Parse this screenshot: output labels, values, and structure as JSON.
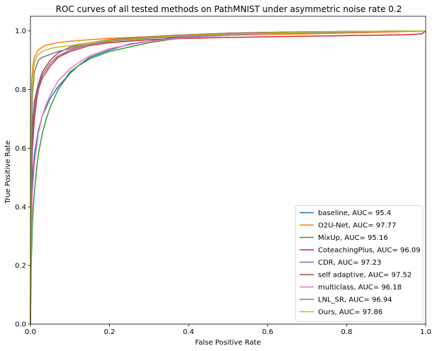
{
  "chart_data": {
    "type": "line",
    "title": "ROC curves of all tested methods on PathMNIST under asymmetric noise rate 0.2",
    "xlabel": "False Positive Rate",
    "ylabel": "True Positive Rate",
    "xlim": [
      0.0,
      1.0
    ],
    "ylim": [
      0.0,
      1.05
    ],
    "xticks": [
      "0.0",
      "0.2",
      "0.4",
      "0.6",
      "0.8",
      "1.0"
    ],
    "yticks": [
      "0.0",
      "0.2",
      "0.4",
      "0.6",
      "0.8",
      "1.0"
    ],
    "grid": false,
    "legend_position": "lower-right",
    "series": [
      {
        "name": "baseline, AUC= 95.4",
        "color": "#1f77b4",
        "points": [
          [
            0,
            0
          ],
          [
            0.002,
            0.38
          ],
          [
            0.005,
            0.5
          ],
          [
            0.01,
            0.58
          ],
          [
            0.02,
            0.66
          ],
          [
            0.03,
            0.71
          ],
          [
            0.05,
            0.77
          ],
          [
            0.07,
            0.81
          ],
          [
            0.09,
            0.84
          ],
          [
            0.1,
            0.86
          ],
          [
            0.12,
            0.88
          ],
          [
            0.15,
            0.91
          ],
          [
            0.2,
            0.935
          ],
          [
            0.25,
            0.955
          ],
          [
            0.3,
            0.965
          ],
          [
            0.35,
            0.975
          ],
          [
            0.4,
            0.98
          ],
          [
            0.5,
            0.985
          ],
          [
            0.6,
            0.99
          ],
          [
            0.7,
            0.993
          ],
          [
            0.8,
            0.996
          ],
          [
            0.9,
            0.998
          ],
          [
            1.0,
            1.0
          ]
        ]
      },
      {
        "name": "O2U-Net, AUC= 97.77",
        "color": "#ff7f0e",
        "points": [
          [
            0,
            0
          ],
          [
            0.001,
            0.7
          ],
          [
            0.003,
            0.82
          ],
          [
            0.006,
            0.88
          ],
          [
            0.01,
            0.91
          ],
          [
            0.015,
            0.925
          ],
          [
            0.02,
            0.935
          ],
          [
            0.03,
            0.945
          ],
          [
            0.04,
            0.952
          ],
          [
            0.05,
            0.955
          ],
          [
            0.07,
            0.96
          ],
          [
            0.1,
            0.965
          ],
          [
            0.15,
            0.97
          ],
          [
            0.2,
            0.975
          ],
          [
            0.3,
            0.98
          ],
          [
            0.4,
            0.983
          ],
          [
            0.5,
            0.985
          ],
          [
            0.6,
            0.988
          ],
          [
            0.7,
            0.99
          ],
          [
            0.8,
            0.993
          ],
          [
            0.9,
            0.996
          ],
          [
            1.0,
            1.0
          ]
        ]
      },
      {
        "name": "MixUp, AUC= 95.16",
        "color": "#2ca02c",
        "points": [
          [
            0,
            0
          ],
          [
            0.002,
            0.2
          ],
          [
            0.005,
            0.35
          ],
          [
            0.01,
            0.45
          ],
          [
            0.015,
            0.52
          ],
          [
            0.02,
            0.58
          ],
          [
            0.03,
            0.65
          ],
          [
            0.04,
            0.7
          ],
          [
            0.05,
            0.74
          ],
          [
            0.06,
            0.77
          ],
          [
            0.07,
            0.8
          ],
          [
            0.08,
            0.82
          ],
          [
            0.1,
            0.855
          ],
          [
            0.12,
            0.88
          ],
          [
            0.15,
            0.905
          ],
          [
            0.2,
            0.93
          ],
          [
            0.25,
            0.945
          ],
          [
            0.3,
            0.96
          ],
          [
            0.35,
            0.97
          ],
          [
            0.4,
            0.978
          ],
          [
            0.5,
            0.985
          ],
          [
            0.6,
            0.99
          ],
          [
            0.7,
            0.994
          ],
          [
            0.8,
            0.997
          ],
          [
            0.9,
            0.999
          ],
          [
            1.0,
            1.0
          ]
        ]
      },
      {
        "name": "CoteachingPlus, AUC= 96.09",
        "color": "#d62728",
        "points": [
          [
            0,
            0
          ],
          [
            0.002,
            0.45
          ],
          [
            0.005,
            0.6
          ],
          [
            0.01,
            0.7
          ],
          [
            0.015,
            0.76
          ],
          [
            0.02,
            0.8
          ],
          [
            0.03,
            0.84
          ],
          [
            0.05,
            0.88
          ],
          [
            0.07,
            0.91
          ],
          [
            0.1,
            0.93
          ],
          [
            0.15,
            0.95
          ],
          [
            0.2,
            0.96
          ],
          [
            0.3,
            0.97
          ],
          [
            0.4,
            0.975
          ],
          [
            0.5,
            0.978
          ],
          [
            0.6,
            0.98
          ],
          [
            0.7,
            0.982
          ],
          [
            0.8,
            0.984
          ],
          [
            0.9,
            0.986
          ],
          [
            0.95,
            0.987
          ],
          [
            0.99,
            0.99
          ],
          [
            1.0,
            1.0
          ]
        ]
      },
      {
        "name": "CDR, AUC= 97.23",
        "color": "#9467bd",
        "points": [
          [
            0,
            0
          ],
          [
            0.002,
            0.5
          ],
          [
            0.005,
            0.65
          ],
          [
            0.01,
            0.74
          ],
          [
            0.02,
            0.81
          ],
          [
            0.03,
            0.85
          ],
          [
            0.05,
            0.89
          ],
          [
            0.07,
            0.915
          ],
          [
            0.1,
            0.935
          ],
          [
            0.15,
            0.955
          ],
          [
            0.2,
            0.965
          ],
          [
            0.3,
            0.98
          ],
          [
            0.4,
            0.987
          ],
          [
            0.5,
            0.992
          ],
          [
            0.6,
            0.995
          ],
          [
            0.7,
            0.997
          ],
          [
            0.8,
            0.998
          ],
          [
            0.9,
            0.999
          ],
          [
            1.0,
            1.0
          ]
        ]
      },
      {
        "name": "self adaptive, AUC= 97.52",
        "color": "#8c564b",
        "points": [
          [
            0,
            0
          ],
          [
            0.002,
            0.55
          ],
          [
            0.005,
            0.68
          ],
          [
            0.01,
            0.76
          ],
          [
            0.02,
            0.82
          ],
          [
            0.03,
            0.86
          ],
          [
            0.05,
            0.9
          ],
          [
            0.07,
            0.925
          ],
          [
            0.1,
            0.945
          ],
          [
            0.15,
            0.96
          ],
          [
            0.2,
            0.97
          ],
          [
            0.3,
            0.98
          ],
          [
            0.4,
            0.987
          ],
          [
            0.5,
            0.992
          ],
          [
            0.6,
            0.995
          ],
          [
            0.7,
            0.997
          ],
          [
            0.8,
            0.998
          ],
          [
            0.9,
            0.999
          ],
          [
            1.0,
            1.0
          ]
        ]
      },
      {
        "name": "multiclass, AUC= 96.18",
        "color": "#e377c2",
        "points": [
          [
            0,
            0
          ],
          [
            0.002,
            0.3
          ],
          [
            0.005,
            0.45
          ],
          [
            0.01,
            0.55
          ],
          [
            0.02,
            0.65
          ],
          [
            0.03,
            0.71
          ],
          [
            0.04,
            0.75
          ],
          [
            0.05,
            0.78
          ],
          [
            0.07,
            0.83
          ],
          [
            0.1,
            0.87
          ],
          [
            0.12,
            0.89
          ],
          [
            0.15,
            0.915
          ],
          [
            0.2,
            0.94
          ],
          [
            0.3,
            0.965
          ],
          [
            0.4,
            0.978
          ],
          [
            0.5,
            0.985
          ],
          [
            0.6,
            0.99
          ],
          [
            0.7,
            0.994
          ],
          [
            0.8,
            0.997
          ],
          [
            0.9,
            0.999
          ],
          [
            1.0,
            1.0
          ]
        ]
      },
      {
        "name": "LNL_SR, AUC= 96.94",
        "color": "#7f7f7f",
        "points": [
          [
            0,
            0
          ],
          [
            0.002,
            0.6
          ],
          [
            0.005,
            0.78
          ],
          [
            0.01,
            0.86
          ],
          [
            0.02,
            0.9
          ],
          [
            0.03,
            0.91
          ],
          [
            0.05,
            0.92
          ],
          [
            0.07,
            0.93
          ],
          [
            0.1,
            0.94
          ],
          [
            0.15,
            0.955
          ],
          [
            0.2,
            0.965
          ],
          [
            0.3,
            0.975
          ],
          [
            0.4,
            0.982
          ],
          [
            0.5,
            0.988
          ],
          [
            0.6,
            0.992
          ],
          [
            0.7,
            0.995
          ],
          [
            0.8,
            0.997
          ],
          [
            0.9,
            0.999
          ],
          [
            1.0,
            1.0
          ]
        ]
      },
      {
        "name": "Ours, AUC= 97.86",
        "color": "#bcbd22",
        "points": [
          [
            0,
            0
          ],
          [
            0.001,
            0.65
          ],
          [
            0.003,
            0.78
          ],
          [
            0.006,
            0.85
          ],
          [
            0.01,
            0.89
          ],
          [
            0.015,
            0.91
          ],
          [
            0.02,
            0.92
          ],
          [
            0.03,
            0.93
          ],
          [
            0.05,
            0.94
          ],
          [
            0.07,
            0.945
          ],
          [
            0.1,
            0.95
          ],
          [
            0.15,
            0.96
          ],
          [
            0.2,
            0.968
          ],
          [
            0.3,
            0.978
          ],
          [
            0.4,
            0.985
          ],
          [
            0.5,
            0.99
          ],
          [
            0.6,
            0.993
          ],
          [
            0.7,
            0.996
          ],
          [
            0.8,
            0.998
          ],
          [
            0.9,
            0.999
          ],
          [
            1.0,
            1.0
          ]
        ]
      }
    ]
  }
}
